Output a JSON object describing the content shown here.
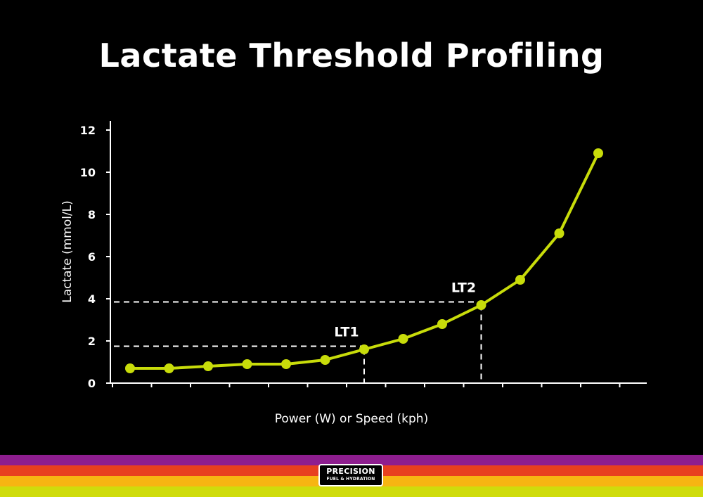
{
  "title": "Lactate Threshold Profiling",
  "colors": {
    "background": "#000000",
    "line": "#c8dc0a",
    "text": "#ffffff",
    "stripes": [
      "#8e1e8f",
      "#e8401f",
      "#f7b512",
      "#cfdc0c"
    ]
  },
  "chart_data": {
    "type": "line",
    "title": "Lactate Threshold Profiling",
    "xlabel": "Power (W) or Speed (kph)",
    "ylabel": "Lactate (mmol/L)",
    "ylim": [
      0,
      12
    ],
    "yticks": [
      0,
      2,
      4,
      6,
      8,
      10,
      12
    ],
    "x_tick_count": 14,
    "x_tick_labels_shown": false,
    "grid": false,
    "series": [
      {
        "x": [
          1,
          2,
          3,
          4,
          5,
          6,
          7,
          8,
          9,
          10,
          11,
          12,
          13
        ],
        "values": [
          0.7,
          0.7,
          0.8,
          0.9,
          0.9,
          1.1,
          1.6,
          2.1,
          2.8,
          3.7,
          4.9,
          7.1,
          10.9
        ]
      }
    ],
    "annotations": [
      {
        "label": "LT1",
        "x": 7,
        "y": 1.75
      },
      {
        "label": "LT2",
        "x": 10,
        "y": 3.85
      }
    ]
  },
  "logo": {
    "line1": "PRECISION",
    "line2": "FUEL & HYDRATION"
  }
}
